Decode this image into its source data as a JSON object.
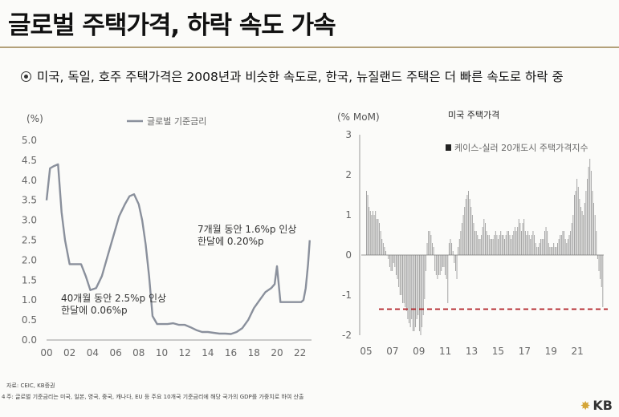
{
  "title": "글로벌 주택가격, 하락 속도 가속",
  "bullet": "미국, 독일, 호주 주택가격은 2008년과 비슷한 속도로, 한국, 뉴질랜드 주택은 더 빠른 속도로 하락 중",
  "footer": {
    "source": "자료: CEIC, KB증권",
    "note": "주: 글로벌 기준금리는 미국, 일본, 영국, 중국, 캐나다, EU 등 주요 10개국 기준금리에 해당 국가의 GDP를 가중치로 하여 산출",
    "page": "4"
  },
  "logo": "KB",
  "colors": {
    "line": "#8a909c",
    "bar": "#9a9a9a",
    "threshold": "#b01c22",
    "accent": "#b3a17a"
  },
  "chart_data": [
    {
      "type": "line",
      "unit": "(%)",
      "legend": "글로벌 기준금리",
      "x_ticks": [
        "00",
        "02",
        "04",
        "06",
        "08",
        "10",
        "12",
        "14",
        "16",
        "18",
        "20",
        "22"
      ],
      "y_ticks": [
        "0.0",
        "0.5",
        "1.0",
        "1.5",
        "2.0",
        "2.5",
        "3.0",
        "3.5",
        "4.0",
        "4.5",
        "5.0"
      ],
      "ylim": [
        0,
        5
      ],
      "xlim": [
        2000,
        2023
      ],
      "series": [
        {
          "x": [
            2000,
            2000.3,
            2000.6,
            2001,
            2001.3,
            2001.6,
            2002,
            2002.5,
            2003,
            2003.4,
            2003.8,
            2004.3,
            2004.8,
            2005.3,
            2005.8,
            2006.3,
            2006.8,
            2007.2,
            2007.6,
            2008,
            2008.3,
            2008.6,
            2008.9,
            2009.2,
            2009.6,
            2010,
            2010.5,
            2011,
            2011.5,
            2012,
            2012.5,
            2013,
            2013.5,
            2014,
            2014.5,
            2015,
            2015.5,
            2016,
            2016.5,
            2017,
            2017.5,
            2018,
            2018.5,
            2019,
            2019.5,
            2019.8,
            2020.0,
            2020.3,
            2020.8,
            2021.3,
            2021.8,
            2022.1,
            2022.3,
            2022.5,
            2022.7,
            2022.85
          ],
          "values": [
            3.5,
            4.3,
            4.35,
            4.4,
            3.2,
            2.5,
            1.9,
            1.9,
            1.9,
            1.6,
            1.25,
            1.3,
            1.6,
            2.1,
            2.6,
            3.1,
            3.4,
            3.6,
            3.65,
            3.4,
            3.0,
            2.4,
            1.6,
            0.6,
            0.4,
            0.4,
            0.4,
            0.42,
            0.38,
            0.38,
            0.32,
            0.25,
            0.2,
            0.2,
            0.18,
            0.16,
            0.16,
            0.15,
            0.2,
            0.3,
            0.5,
            0.8,
            1.0,
            1.2,
            1.3,
            1.4,
            1.85,
            0.95,
            0.95,
            0.95,
            0.95,
            0.95,
            1.0,
            1.3,
            1.9,
            2.5
          ]
        }
      ],
      "annotations": [
        {
          "lines": [
            "40개월 동안 2.5%p 인상",
            "한달에 0.06%p"
          ]
        },
        {
          "lines": [
            "7개월 동안 1.6%p 인상",
            "한달에 0.20%p"
          ]
        }
      ]
    },
    {
      "type": "bar",
      "unit": "(% MoM)",
      "title": "미국 주택가격",
      "legend": "케이스-실러 20개도시 주택가격지수",
      "x_ticks": [
        "05",
        "07",
        "09",
        "11",
        "13",
        "15",
        "17",
        "19",
        "21"
      ],
      "y_ticks": [
        "3",
        "2",
        "1",
        "0",
        "-1",
        "-2"
      ],
      "ylim": [
        -2,
        3
      ],
      "xlim": [
        2005,
        2023
      ],
      "threshold": -1.35,
      "series": [
        {
          "start_year": 2005,
          "values": [
            1.6,
            1.5,
            1.2,
            1.1,
            1.0,
            1.1,
            1.0,
            1.1,
            0.9,
            0.9,
            0.8,
            0.6,
            0.4,
            0.3,
            0.2,
            0.1,
            0.0,
            -0.1,
            -0.3,
            -0.4,
            -0.4,
            -0.2,
            -0.3,
            -0.5,
            -0.6,
            -0.8,
            -1.0,
            -1.0,
            -1.2,
            -1.2,
            -1.3,
            -1.4,
            -1.6,
            -1.7,
            -1.8,
            -1.6,
            -1.9,
            -1.9,
            -1.8,
            -1.6,
            -1.5,
            -1.9,
            -2.0,
            -1.8,
            -1.5,
            -1.1,
            -0.4,
            0.3,
            0.6,
            0.6,
            0.5,
            0.3,
            0.2,
            -0.4,
            -0.5,
            -0.6,
            -0.5,
            -0.5,
            -0.4,
            -0.3,
            -0.3,
            -0.5,
            -0.6,
            -1.2,
            0.3,
            0.4,
            0.3,
            0.1,
            -0.2,
            -0.4,
            -0.6,
            0.2,
            0.4,
            0.6,
            0.8,
            1.0,
            1.2,
            1.4,
            1.5,
            1.6,
            1.4,
            1.2,
            1.0,
            0.8,
            0.6,
            0.6,
            0.5,
            0.4,
            0.4,
            0.5,
            0.7,
            0.9,
            0.8,
            0.6,
            0.5,
            0.5,
            0.4,
            0.4,
            0.4,
            0.5,
            0.6,
            0.5,
            0.4,
            0.5,
            0.6,
            0.5,
            0.5,
            0.4,
            0.5,
            0.6,
            0.6,
            0.5,
            0.4,
            0.5,
            0.6,
            0.7,
            0.6,
            0.7,
            0.9,
            0.8,
            0.6,
            0.8,
            0.9,
            0.6,
            0.5,
            0.6,
            0.5,
            0.4,
            0.5,
            0.6,
            0.5,
            0.3,
            0.2,
            0.2,
            0.3,
            0.4,
            0.4,
            0.4,
            0.6,
            0.7,
            0.6,
            0.3,
            0.2,
            0.2,
            0.2,
            0.3,
            0.2,
            0.2,
            0.3,
            0.4,
            0.5,
            0.5,
            0.6,
            0.6,
            0.4,
            0.3,
            0.4,
            0.5,
            0.6,
            0.8,
            1.0,
            1.5,
            1.6,
            1.9,
            1.7,
            1.4,
            1.2,
            1.1,
            1.0,
            1.3,
            1.6,
            1.9,
            2.2,
            2.4,
            2.1,
            1.6,
            1.3,
            1.0,
            0.6,
            -0.1,
            -0.4,
            -0.6,
            -0.8,
            -1.3
          ]
        }
      ]
    }
  ]
}
